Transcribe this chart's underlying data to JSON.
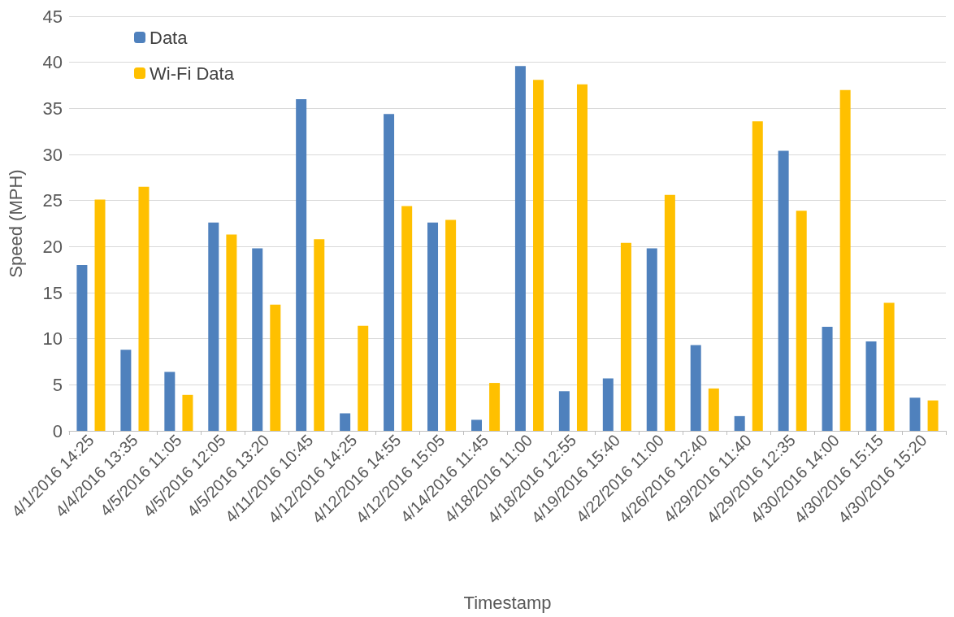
{
  "chart_data": {
    "type": "bar",
    "xlabel": "Timestamp",
    "ylabel": "Speed (MPH)",
    "categories": [
      "4/1/2016 14:25",
      "4/4/2016 13:35",
      "4/5/2016 11:05",
      "4/5/2016 12:05",
      "4/5/2016 13:20",
      "4/11/2016 10:45",
      "4/12/2016 14:25",
      "4/12/2016 14:55",
      "4/12/2016 15:05",
      "4/14/2016 11:45",
      "4/18/2016 11:00",
      "4/18/2016 12:55",
      "4/19/2016 15:40",
      "4/22/2016 11:00",
      "4/26/2016 12:40",
      "4/29/2016 11:40",
      "4/29/2016 12:35",
      "4/30/2016 14:00",
      "4/30/2016 15:15",
      "4/30/2016 15:20"
    ],
    "series": [
      {
        "name": "Data",
        "color": "#4f81bd",
        "values": [
          18.0,
          8.8,
          6.4,
          22.6,
          19.8,
          36.0,
          1.9,
          34.4,
          22.6,
          1.2,
          39.6,
          4.3,
          5.7,
          19.8,
          9.3,
          1.6,
          30.4,
          11.3,
          9.7,
          3.6
        ]
      },
      {
        "name": "Wi-Fi Data",
        "color": "#ffc000",
        "values": [
          25.1,
          26.5,
          3.9,
          21.3,
          13.7,
          20.8,
          11.4,
          24.4,
          22.9,
          5.2,
          38.1,
          37.6,
          20.4,
          25.6,
          4.6,
          33.6,
          23.9,
          37.0,
          13.9,
          3.3
        ]
      }
    ],
    "ylim": [
      0,
      45
    ],
    "yticks": [
      0,
      5,
      10,
      15,
      20,
      25,
      30,
      35,
      40,
      45
    ],
    "grid": "y",
    "legend": "top left"
  }
}
